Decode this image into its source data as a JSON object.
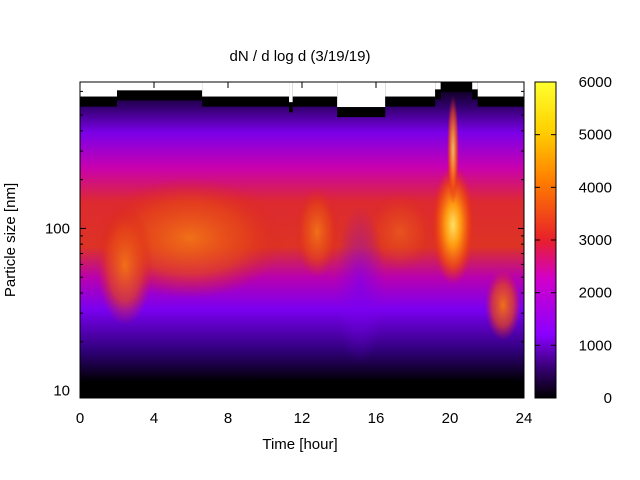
{
  "chart_data": {
    "type": "heatmap",
    "title": "dN / d log d (3/19/19)",
    "xlabel": "Time [hour]",
    "ylabel": "Particle size [nm]",
    "xlim": [
      0,
      24
    ],
    "ylim": [
      9,
      800
    ],
    "yscale": "log",
    "x_ticks": [
      0,
      4,
      8,
      12,
      16,
      20,
      24
    ],
    "y_ticks": [
      10,
      100
    ],
    "colorbar": {
      "range": [
        0,
        6000
      ],
      "ticks": [
        0,
        1000,
        2000,
        3000,
        4000,
        5000,
        6000
      ],
      "colormap": [
        "#000000",
        "#3a007a",
        "#8a00ff",
        "#d300c8",
        "#e8202a",
        "#ff7a00",
        "#ffd200",
        "#ffff30"
      ]
    },
    "upper_size_limit_nm": [
      {
        "x": [
          0,
          2
        ],
        "y": 650
      },
      {
        "x": [
          2,
          6.6
        ],
        "y": 710
      },
      {
        "x": [
          6.6,
          11.3
        ],
        "y": 650
      },
      {
        "x": [
          11.3,
          11.5
        ],
        "y": 600
      },
      {
        "x": [
          11.5,
          13.9
        ],
        "y": 650
      },
      {
        "x": [
          13.9,
          16.5
        ],
        "y": 560
      },
      {
        "x": [
          16.5,
          19.2
        ],
        "y": 650
      },
      {
        "x": [
          19.2,
          19.5
        ],
        "y": 720
      },
      {
        "x": [
          19.5,
          21.2
        ],
        "y": 800
      },
      {
        "x": [
          21.2,
          21.5
        ],
        "y": 720
      },
      {
        "x": [
          21.5,
          24
        ],
        "y": 650
      }
    ],
    "features": [
      {
        "time_hr": 2.5,
        "size_nm": 85,
        "dN_dlogd": 3300
      },
      {
        "time_hr": 5.5,
        "size_nm": 100,
        "dN_dlogd": 3300
      },
      {
        "time_hr": 8.5,
        "size_nm": 100,
        "dN_dlogd": 3500
      },
      {
        "time_hr": 12.7,
        "size_nm": 90,
        "dN_dlogd": 3400
      },
      {
        "time_hr": 17.5,
        "size_nm": 95,
        "dN_dlogd": 2600
      },
      {
        "time_hr": 20.1,
        "size_nm": 120,
        "dN_dlogd": 5800
      },
      {
        "time_hr": 22.5,
        "size_nm": 35,
        "dN_dlogd": 3600
      }
    ]
  }
}
